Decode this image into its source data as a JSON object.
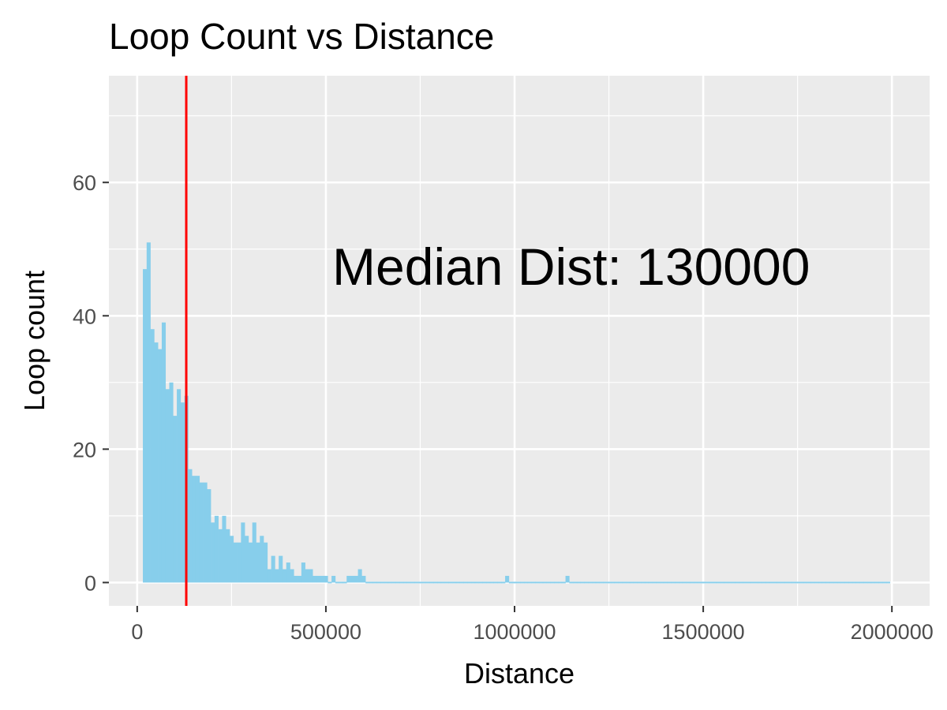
{
  "chart_data": {
    "type": "bar",
    "title": "Loop Count vs Distance",
    "xlabel": "Distance",
    "ylabel": "Loop count",
    "xlim": [
      -75000,
      2100000
    ],
    "ylim": [
      -3.5,
      76
    ],
    "x_ticks": [
      0,
      500000,
      1000000,
      1500000,
      2000000
    ],
    "x_tick_labels": [
      "0",
      "500000",
      "1000000",
      "1500000",
      "2000000"
    ],
    "y_ticks": [
      0,
      20,
      40,
      60
    ],
    "y_tick_labels": [
      "0",
      "20",
      "40",
      "60"
    ],
    "grid": true,
    "bin_width": 10000,
    "bar_color": "#87ceeb",
    "panel_background": "#ebebeb",
    "grid_color": "#ffffff",
    "median_line": {
      "x": 130000,
      "color": "#ff0000"
    },
    "annotation": {
      "text": "Median Dist: 130000",
      "x": 1150000,
      "y": 47.5
    },
    "x": [
      20000,
      30000,
      40000,
      50000,
      60000,
      70000,
      80000,
      90000,
      100000,
      110000,
      120000,
      130000,
      140000,
      150000,
      160000,
      170000,
      180000,
      190000,
      200000,
      210000,
      220000,
      230000,
      240000,
      250000,
      260000,
      270000,
      280000,
      290000,
      300000,
      310000,
      320000,
      330000,
      340000,
      350000,
      360000,
      370000,
      380000,
      390000,
      400000,
      410000,
      420000,
      430000,
      440000,
      450000,
      460000,
      470000,
      480000,
      490000,
      500000,
      510000,
      520000,
      530000,
      540000,
      550000,
      560000,
      570000,
      580000,
      590000,
      600000,
      610000,
      620000,
      630000,
      640000,
      650000,
      660000,
      670000,
      680000,
      690000,
      700000,
      710000,
      720000,
      730000,
      740000,
      750000,
      760000,
      770000,
      780000,
      790000,
      800000,
      810000,
      820000,
      830000,
      840000,
      850000,
      860000,
      870000,
      880000,
      890000,
      900000,
      910000,
      920000,
      930000,
      940000,
      950000,
      960000,
      970000,
      980000,
      990000,
      1000000,
      1010000,
      1020000,
      1030000,
      1040000,
      1050000,
      1060000,
      1070000,
      1080000,
      1090000,
      1100000,
      1110000,
      1120000,
      1130000,
      1140000,
      1150000,
      1160000,
      1170000,
      1180000,
      1190000,
      1200000,
      1210000,
      1220000,
      1230000,
      1240000,
      1250000,
      1260000,
      1270000,
      1280000,
      1290000,
      1300000,
      1310000,
      1320000,
      1330000,
      1340000,
      1350000,
      1360000,
      1370000,
      1380000,
      1390000,
      1400000,
      1410000,
      1420000,
      1430000,
      1440000,
      1450000,
      1460000,
      1470000,
      1480000,
      1490000,
      1500000,
      1510000,
      1520000,
      1530000,
      1540000,
      1550000,
      1560000,
      1570000,
      1580000,
      1590000,
      1600000,
      1610000,
      1620000,
      1630000,
      1640000,
      1650000,
      1660000,
      1670000,
      1680000,
      1690000,
      1700000,
      1710000,
      1720000,
      1730000,
      1740000,
      1750000,
      1760000,
      1770000,
      1780000,
      1790000,
      1800000,
      1810000,
      1820000,
      1830000,
      1840000,
      1850000,
      1860000,
      1870000,
      1880000,
      1890000,
      1900000,
      1910000,
      1920000,
      1930000,
      1940000,
      1950000,
      1960000,
      1970000,
      1980000,
      1990000
    ],
    "values": [
      47,
      51,
      38,
      36,
      35,
      39,
      29,
      30,
      25,
      29,
      27,
      28,
      17,
      16,
      16,
      15,
      15,
      14,
      9,
      10,
      8,
      10,
      8,
      7,
      6,
      6,
      9,
      7,
      6,
      9,
      6,
      7,
      6,
      2,
      4,
      2,
      4,
      2,
      3,
      2,
      1,
      1,
      3,
      2,
      2,
      1,
      1,
      1,
      1,
      0,
      1,
      0,
      0,
      0,
      1,
      1,
      1,
      2,
      1,
      0,
      0,
      0,
      0,
      0,
      0,
      0,
      0,
      0,
      0,
      0,
      0,
      0,
      0,
      0,
      0,
      0,
      0,
      0,
      0,
      0,
      0,
      0,
      0,
      0,
      0,
      0,
      0,
      0,
      0,
      0,
      0,
      0,
      0,
      0,
      0,
      0,
      1,
      0,
      0,
      0,
      0,
      0,
      0,
      0,
      0,
      0,
      0,
      0,
      0,
      0,
      0,
      0,
      1,
      0,
      0,
      0,
      0,
      0,
      0,
      0,
      0,
      0,
      0,
      0,
      0,
      0,
      0,
      0,
      0,
      0,
      0,
      0,
      0,
      0,
      0,
      0,
      0,
      0,
      0,
      0,
      0,
      0,
      0,
      0,
      0,
      0,
      0,
      0,
      0,
      0,
      0,
      0,
      0,
      0,
      0,
      0,
      0,
      0,
      0,
      0,
      0,
      0,
      0,
      0,
      0,
      0,
      0,
      0,
      0,
      0,
      0,
      0,
      0,
      0,
      0,
      0,
      0,
      0,
      0,
      0,
      0,
      0,
      0,
      0,
      0,
      0,
      0,
      0,
      0,
      0,
      0,
      0,
      0,
      0,
      0,
      0,
      0,
      0
    ]
  }
}
